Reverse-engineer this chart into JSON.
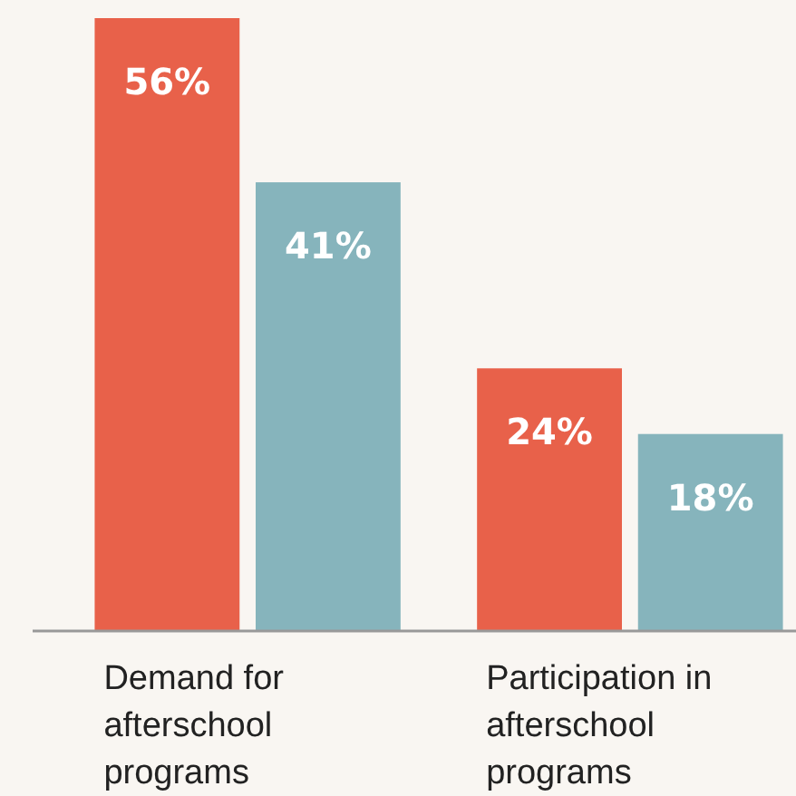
{
  "chart_data": {
    "type": "bar",
    "categories": [
      "Demand for afterschool programs",
      "Participation in afterschool programs"
    ],
    "series": [
      {
        "color": "#e8614a",
        "values": [
          56,
          24
        ],
        "value_labels": [
          "56%",
          "24%"
        ]
      },
      {
        "color": "#86b4bc",
        "values": [
          41,
          18
        ],
        "value_labels": [
          "41%",
          "18%"
        ]
      }
    ]
  }
}
